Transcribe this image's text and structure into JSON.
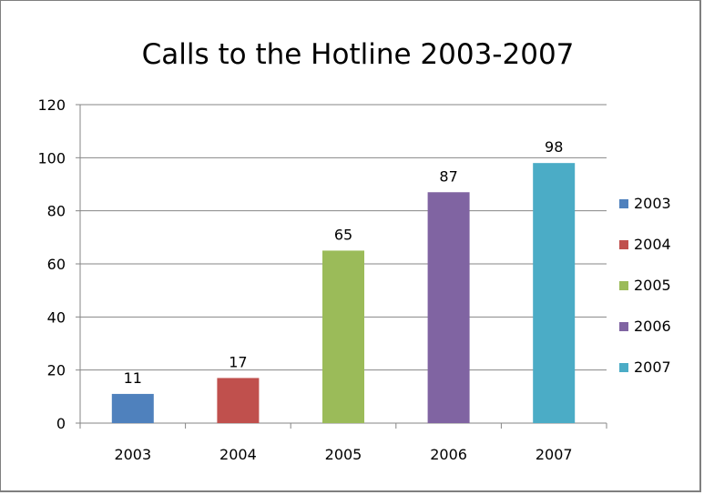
{
  "chart_data": {
    "type": "bar",
    "title": "Calls to the Hotline 2003-2007",
    "xlabel": "",
    "ylabel": "",
    "categories": [
      "2003",
      "2004",
      "2005",
      "2006",
      "2007"
    ],
    "values": [
      11,
      17,
      65,
      87,
      98
    ],
    "colors": [
      "#4f81bd",
      "#c0504d",
      "#9bbb59",
      "#8064a2",
      "#4bacc6"
    ],
    "ylim": [
      0,
      120
    ],
    "yticks": [
      0,
      20,
      40,
      60,
      80,
      100,
      120
    ],
    "grid": true,
    "legend": {
      "position": "right",
      "entries": [
        "2003",
        "2004",
        "2005",
        "2006",
        "2007"
      ]
    }
  }
}
